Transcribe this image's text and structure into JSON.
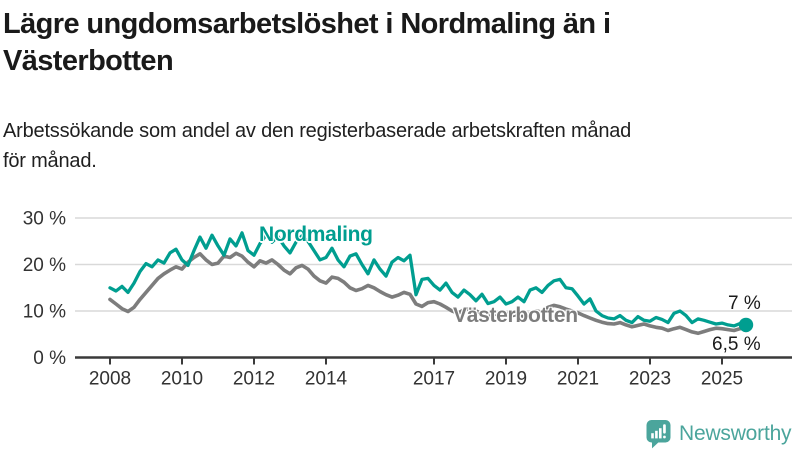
{
  "header": {
    "title": "Lägre ungdomsarbetslöshet i Nordmaling än i\nVästerbotten",
    "subtitle": "Arbetssökande som andel av den registerbaserade arbetskraften månad\nför månad."
  },
  "chart_data": {
    "type": "line",
    "title": "Lägre ungdomsarbetslöshet i Nordmaling än i Västerbotten",
    "xlabel": "",
    "ylabel": "",
    "grid": true,
    "legend_position": "inline-labels-on-lines",
    "x_start_year": 2008,
    "x_step_years": 0.166667,
    "x_end_year": 2025.67,
    "x_axis": {
      "tick_years": [
        2008,
        2010,
        2012,
        2014,
        2017,
        2019,
        2021,
        2023,
        2025
      ],
      "labels": [
        "2008",
        "2010",
        "2012",
        "2014",
        "2017",
        "2019",
        "2021",
        "2023",
        "2025"
      ]
    },
    "y_axis": {
      "ticks": [
        0,
        10,
        20,
        30
      ],
      "labels": [
        "0 %",
        "10 %",
        "20 %",
        "30 %"
      ],
      "ylim": [
        0,
        31
      ]
    },
    "colors": {
      "nordmaling": "#009e90",
      "vasterbotten": "#7d7d7d",
      "grid": "#d9d9d9",
      "axis": "#3a3a3a",
      "tick_text": "#333333"
    },
    "series": [
      {
        "name": "Västerbotten",
        "color": "#7d7d7d",
        "end_label": "6,5 %",
        "end_value": 6.5,
        "values": [
          12.5,
          11.5,
          10.5,
          9.9,
          10.8,
          12.5,
          14.0,
          15.5,
          17.0,
          18.0,
          18.8,
          19.5,
          19.0,
          20.5,
          21.5,
          22.3,
          21.0,
          20.0,
          20.3,
          21.8,
          21.5,
          22.4,
          21.8,
          20.5,
          19.5,
          20.8,
          20.3,
          21.0,
          20.0,
          18.8,
          18.0,
          19.3,
          19.8,
          19.0,
          17.5,
          16.5,
          16.0,
          17.3,
          17.0,
          16.2,
          15.0,
          14.4,
          14.8,
          15.5,
          15.0,
          14.2,
          13.5,
          13.0,
          13.4,
          14.0,
          13.6,
          11.5,
          11.0,
          11.8,
          12.0,
          11.5,
          10.8,
          10.0,
          9.5,
          10.3,
          10.5,
          10.0,
          9.4,
          8.9,
          9.3,
          9.8,
          9.5,
          9.0,
          9.3,
          8.8,
          9.5,
          10.0,
          9.8,
          10.8,
          11.2,
          10.9,
          10.4,
          10.0,
          9.6,
          9.0,
          8.5,
          8.0,
          7.6,
          7.3,
          7.2,
          7.5,
          7.0,
          6.6,
          6.9,
          7.2,
          6.8,
          6.5,
          6.3,
          5.8,
          6.2,
          6.5,
          6.0,
          5.5,
          5.2,
          5.6,
          6.0,
          6.3,
          6.2,
          6.0,
          5.8,
          6.2,
          6.5
        ]
      },
      {
        "name": "Nordmaling",
        "color": "#009e90",
        "end_label": "7 %",
        "end_value": 7.0,
        "values": [
          15.0,
          14.3,
          15.3,
          14.0,
          16.0,
          18.5,
          20.2,
          19.5,
          21.0,
          20.3,
          22.5,
          23.3,
          21.0,
          19.8,
          23.0,
          25.9,
          23.5,
          26.3,
          24.0,
          22.0,
          25.5,
          24.0,
          26.8,
          23.0,
          22.0,
          24.5,
          26.3,
          24.8,
          26.0,
          24.0,
          22.5,
          24.8,
          26.2,
          25.0,
          23.0,
          21.0,
          21.5,
          23.5,
          21.0,
          19.5,
          21.8,
          22.3,
          20.0,
          18.0,
          21.0,
          19.0,
          17.5,
          20.5,
          21.5,
          20.8,
          22.0,
          13.5,
          16.8,
          17.0,
          15.5,
          14.5,
          16.0,
          14.0,
          13.0,
          14.5,
          13.5,
          12.2,
          13.6,
          11.6,
          12.0,
          13.0,
          11.5,
          12.0,
          13.0,
          12.0,
          14.5,
          15.0,
          14.0,
          15.5,
          16.5,
          16.8,
          15.0,
          14.8,
          13.2,
          11.5,
          12.6,
          10.0,
          9.0,
          8.5,
          8.3,
          9.0,
          8.0,
          7.5,
          8.8,
          8.0,
          7.8,
          8.6,
          8.2,
          7.5,
          9.5,
          10.0,
          9.0,
          7.5,
          8.3,
          8.0,
          7.6,
          7.2,
          7.4,
          7.0,
          6.8,
          7.3,
          7.0
        ]
      }
    ]
  },
  "footer": {
    "brand": "Newsworthy"
  }
}
